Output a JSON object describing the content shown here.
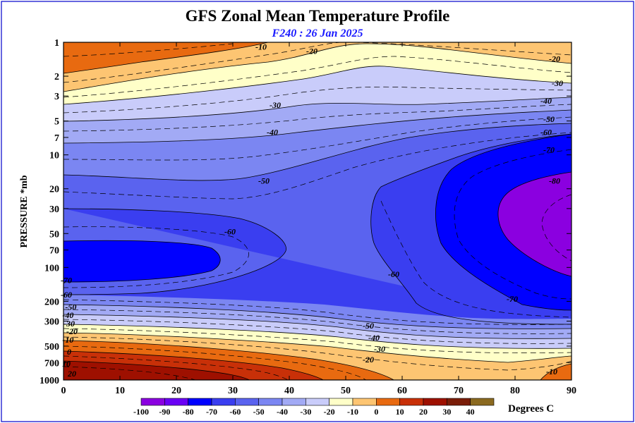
{
  "chart_data": {
    "type": "contour",
    "title": "GFS Zonal Mean Temperature Profile",
    "subtitle": "F240 : 26 Jan 2025",
    "ylabel": "PRESSURE *mb",
    "colorbar_label": "Degrees C",
    "xlim": [
      0,
      90
    ],
    "ylim": [
      1000,
      1
    ],
    "yscale": "log",
    "x_ticks": [
      0,
      10,
      20,
      30,
      40,
      50,
      60,
      70,
      80,
      90
    ],
    "y_ticks": [
      1,
      2,
      3,
      5,
      7,
      10,
      20,
      30,
      50,
      70,
      100,
      200,
      300,
      500,
      700,
      1000
    ],
    "colorbar_ticks": [
      -100,
      -90,
      -80,
      -70,
      -60,
      -50,
      -40,
      -30,
      -20,
      -10,
      0,
      10,
      20,
      30,
      40
    ],
    "colorbar_colors": [
      "#8b00e0",
      "#6a00f5",
      "#0000ff",
      "#3a3ef0",
      "#5a63ef",
      "#7b86f2",
      "#a2aaf5",
      "#c9ccfa",
      "#ffffc8",
      "#fdc572",
      "#e86a10",
      "#c83008",
      "#9e1000",
      "#7a1d08",
      "#8b6a20"
    ],
    "contour_labels": [
      {
        "text": "-10",
        "x": 35,
        "y": 1.1
      },
      {
        "text": "-20",
        "x": 44,
        "y": 1.2
      },
      {
        "text": "-20",
        "x": 87,
        "y": 1.4
      },
      {
        "text": "-30",
        "x": 87.5,
        "y": 2.3
      },
      {
        "text": "-40",
        "x": 85.5,
        "y": 3.3
      },
      {
        "text": "-50",
        "x": 86,
        "y": 4.8
      },
      {
        "text": "-60",
        "x": 85.5,
        "y": 6.3
      },
      {
        "text": "-70",
        "x": 86,
        "y": 9
      },
      {
        "text": "-80",
        "x": 87,
        "y": 17
      },
      {
        "text": "-30",
        "x": 37.5,
        "y": 3.6
      },
      {
        "text": "-40",
        "x": 37,
        "y": 6.3
      },
      {
        "text": "-50",
        "x": 35.5,
        "y": 17
      },
      {
        "text": "-60",
        "x": 29.5,
        "y": 48
      },
      {
        "text": "-60",
        "x": 58.5,
        "y": 115
      },
      {
        "text": "-70",
        "x": 79.5,
        "y": 190
      },
      {
        "text": "-70",
        "x": 0.5,
        "y": 130
      },
      {
        "text": "-60",
        "x": 0.5,
        "y": 175
      },
      {
        "text": "-50",
        "x": 1.3,
        "y": 225
      },
      {
        "text": "-40",
        "x": 0.8,
        "y": 265
      },
      {
        "text": "-30",
        "x": 1,
        "y": 315
      },
      {
        "text": "-20",
        "x": 1.5,
        "y": 370
      },
      {
        "text": "-10",
        "x": 0.8,
        "y": 440
      },
      {
        "text": "0",
        "x": 1,
        "y": 560
      },
      {
        "text": "10",
        "x": 0.5,
        "y": 720
      },
      {
        "text": "20",
        "x": 1.5,
        "y": 880
      },
      {
        "text": "-50",
        "x": 54,
        "y": 330
      },
      {
        "text": "-40",
        "x": 55,
        "y": 420
      },
      {
        "text": "-30",
        "x": 56,
        "y": 530
      },
      {
        "text": "-20",
        "x": 54,
        "y": 660
      },
      {
        "text": "-10",
        "x": 86.5,
        "y": 840
      }
    ]
  }
}
